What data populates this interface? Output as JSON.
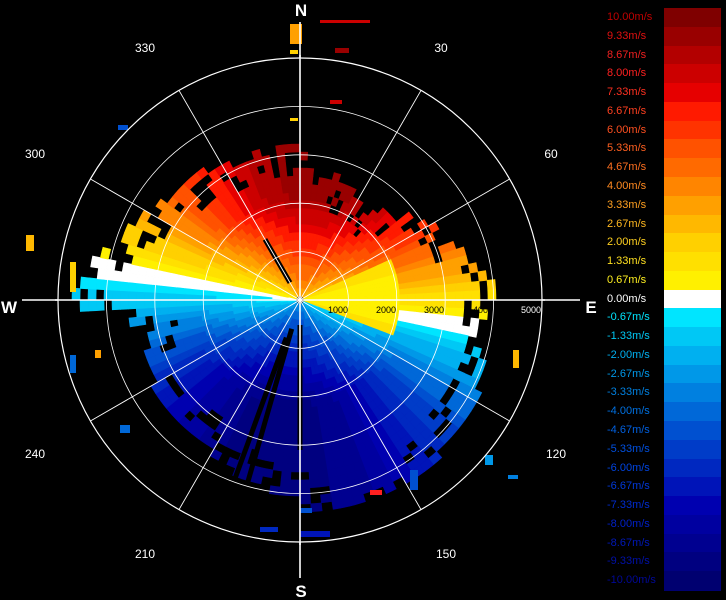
{
  "display": {
    "cardinals": {
      "north": "N",
      "south": "S",
      "east": "E",
      "west": "W"
    },
    "azimuth_labels": [
      "30",
      "60",
      "120",
      "150",
      "210",
      "240",
      "300",
      "330"
    ],
    "range_labels": [
      "1000",
      "2000",
      "3000",
      "4000",
      "5000"
    ],
    "max_range": 5000
  },
  "colorbar": {
    "entries": [
      {
        "label": "10.00m/s",
        "color": "#7f0000",
        "text_color": "#c00000"
      },
      {
        "label": "9.33m/s",
        "color": "#990000",
        "text_color": "#e01010"
      },
      {
        "label": "8.67m/s",
        "color": "#b30000",
        "text_color": "#f02020"
      },
      {
        "label": "8.00m/s",
        "color": "#cc0000",
        "text_color": "#ff2020"
      },
      {
        "label": "7.33m/s",
        "color": "#e60000",
        "text_color": "#ff3020"
      },
      {
        "label": "6.67m/s",
        "color": "#ff1a00",
        "text_color": "#ff4020"
      },
      {
        "label": "6.00m/s",
        "color": "#ff3300",
        "text_color": "#ff5020"
      },
      {
        "label": "5.33m/s",
        "color": "#ff5200",
        "text_color": "#ff6020"
      },
      {
        "label": "4.67m/s",
        "color": "#ff6a00",
        "text_color": "#ff7020"
      },
      {
        "label": "4.00m/s",
        "color": "#ff8500",
        "text_color": "#ff8a20"
      },
      {
        "label": "3.33m/s",
        "color": "#ffa000",
        "text_color": "#ffa020"
      },
      {
        "label": "2.67m/s",
        "color": "#ffb800",
        "text_color": "#ffb820"
      },
      {
        "label": "2.00m/s",
        "color": "#ffd000",
        "text_color": "#ffd020"
      },
      {
        "label": "1.33m/s",
        "color": "#ffe000",
        "text_color": "#ffe020"
      },
      {
        "label": "0.67m/s",
        "color": "#fff000",
        "text_color": "#fff020"
      },
      {
        "label": "0.00m/s",
        "color": "#ffffff",
        "text_color": "#ffffff"
      },
      {
        "label": "-0.67m/s",
        "color": "#00e5ff",
        "text_color": "#00e5ff"
      },
      {
        "label": "-1.33m/s",
        "color": "#00c8f5",
        "text_color": "#00c8f5"
      },
      {
        "label": "-2.00m/s",
        "color": "#00b0f0",
        "text_color": "#00b0f0"
      },
      {
        "label": "-2.67m/s",
        "color": "#0098e8",
        "text_color": "#0098e8"
      },
      {
        "label": "-3.33m/s",
        "color": "#0080e0",
        "text_color": "#0080e0"
      },
      {
        "label": "-4.00m/s",
        "color": "#0068d8",
        "text_color": "#0070e0"
      },
      {
        "label": "-4.67m/s",
        "color": "#0050d0",
        "text_color": "#0060e0"
      },
      {
        "label": "-5.33m/s",
        "color": "#003cc8",
        "text_color": "#0050e0"
      },
      {
        "label": "-6.00m/s",
        "color": "#0028c0",
        "text_color": "#0044e0"
      },
      {
        "label": "-6.67m/s",
        "color": "#0014b8",
        "text_color": "#0038d8"
      },
      {
        "label": "-7.33m/s",
        "color": "#0000b0",
        "text_color": "#002cd0"
      },
      {
        "label": "-8.00m/s",
        "color": "#0000a0",
        "text_color": "#0020c8"
      },
      {
        "label": "-8.67m/s",
        "color": "#000090",
        "text_color": "#0018b8"
      },
      {
        "label": "-9.33m/s",
        "color": "#000080",
        "text_color": "#0010a8"
      },
      {
        "label": "-10.00m/s",
        "color": "#000070",
        "text_color": "#000898"
      }
    ]
  }
}
